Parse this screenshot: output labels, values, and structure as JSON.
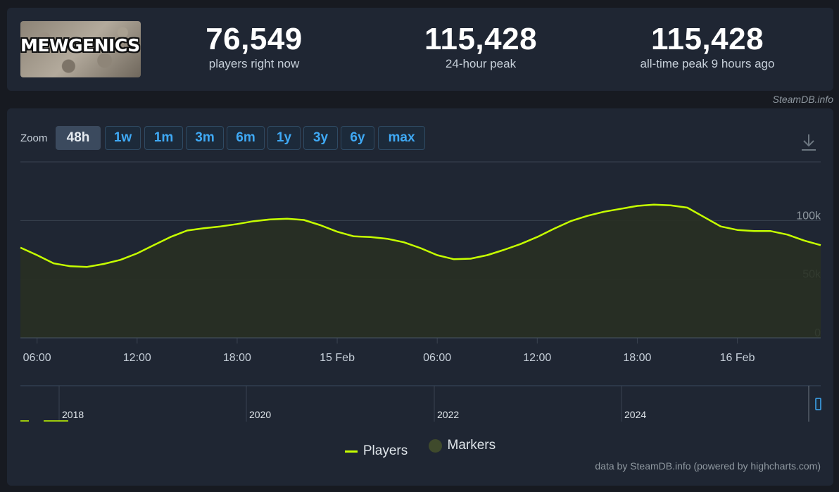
{
  "game": {
    "logo_text": "MEWGENICS!"
  },
  "stats": [
    {
      "value": "76,549",
      "label": "players right now"
    },
    {
      "value": "115,428",
      "label": "24-hour peak"
    },
    {
      "value": "115,428",
      "label": "all-time peak 9 hours ago"
    }
  ],
  "credit_top": "SteamDB.info",
  "zoom": {
    "label": "Zoom",
    "options": [
      "48h",
      "1w",
      "1m",
      "3m",
      "6m",
      "1y",
      "3y",
      "6y",
      "max"
    ],
    "selected": "48h"
  },
  "legend": {
    "players": "Players",
    "markers": "Markers"
  },
  "credit_bottom": "data by SteamDB.info (powered by highcharts.com)",
  "colors": {
    "line": "#c6ff00",
    "markers": "#3f4a2c",
    "accent": "#3fa9f5",
    "grid": "#3a4350"
  },
  "chart_data": {
    "type": "area",
    "series": [
      {
        "name": "Players",
        "x_hours": [
          0,
          1,
          2,
          3,
          4,
          5,
          6,
          7,
          8,
          9,
          10,
          11,
          12,
          13,
          14,
          15,
          16,
          17,
          18,
          19,
          20,
          21,
          22,
          23,
          24,
          25,
          26,
          27,
          28,
          29,
          30,
          31,
          32,
          33,
          34,
          35,
          36,
          37,
          38,
          39,
          40,
          41,
          42,
          43,
          44,
          45,
          46,
          47,
          48
        ],
        "values": [
          77000,
          70500,
          63500,
          61000,
          60500,
          63000,
          66500,
          72000,
          79000,
          86000,
          91500,
          93500,
          95000,
          97000,
          99500,
          101000,
          101500,
          100500,
          96000,
          90500,
          86500,
          86000,
          84500,
          81500,
          76500,
          70500,
          67000,
          67500,
          70500,
          75000,
          80000,
          86000,
          93000,
          99500,
          104000,
          107500,
          110000,
          112500,
          113500,
          113000,
          111000,
          103000,
          95000,
          92000,
          91000,
          91000,
          88000,
          83000,
          79000
        ]
      }
    ],
    "x_tick_labels": [
      "06:00",
      "12:00",
      "18:00",
      "15 Feb",
      "06:00",
      "12:00",
      "18:00",
      "16 Feb"
    ],
    "y_tick_labels": [
      "0",
      "50k",
      "100k"
    ],
    "ylim": [
      0,
      150000
    ],
    "grid": true,
    "navigator_year_labels": [
      "2018",
      "2020",
      "2022",
      "2024"
    ],
    "legend_placement": "bottom-center"
  }
}
